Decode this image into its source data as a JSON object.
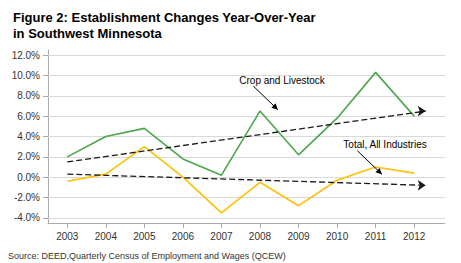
{
  "chart_data": {
    "type": "line",
    "title": "Figure 2: Establishment Changes Year-Over-Year\nin Southwest Minnesota",
    "source": "Source: DEED,Quarterly Census of Employment and Wages (QCEW)",
    "x": [
      2003,
      2004,
      2005,
      2006,
      2007,
      2008,
      2009,
      2010,
      2011,
      2012
    ],
    "series": [
      {
        "color": "#4CA64C",
        "line_style": "solid",
        "values": [
          2.0,
          4.0,
          4.8,
          1.8,
          0.2,
          6.5,
          2.2,
          5.8,
          10.3,
          6.0
        ]
      },
      {
        "color": "#FFC000",
        "line_style": "solid",
        "values": [
          -0.4,
          0.3,
          3.0,
          0.0,
          -3.5,
          -0.5,
          -2.8,
          -0.3,
          1.0,
          0.4
        ]
      },
      {
        "x": [
          2003,
          2012.3
        ],
        "values": [
          1.5,
          6.5
        ],
        "color": "#1a1a1a",
        "line_style": "dashed",
        "marker": "arrow"
      },
      {
        "x": [
          2003,
          2012.3
        ],
        "values": [
          0.3,
          -0.8
        ],
        "color": "#1a1a1a",
        "line_style": "dashed",
        "marker": "arrow"
      }
    ],
    "annotations": [
      {
        "text": "Crop and Livestock",
        "x": 2008.5,
        "y": 6.5
      },
      {
        "text": "Total, All Industries",
        "x": 2011.2,
        "y": 0.15
      }
    ],
    "xlim": [
      2002.5,
      2012.8
    ],
    "xticks": [
      2003,
      2004,
      2005,
      2006,
      2007,
      2008,
      2009,
      2010,
      2011,
      2012
    ],
    "ylim": [
      -4.5,
      12.5
    ],
    "yticks": [
      {
        "value": -4.0,
        "label": "-4.0%"
      },
      {
        "value": -2.0,
        "label": "-2.0%"
      },
      {
        "value": 0.0,
        "label": "0.0%"
      },
      {
        "value": 2.0,
        "label": "2.0%"
      },
      {
        "value": 4.0,
        "label": "4.0%"
      },
      {
        "value": 6.0,
        "label": "6.0%"
      },
      {
        "value": 8.0,
        "label": "8.0%"
      },
      {
        "value": 10.0,
        "label": "10.0%"
      },
      {
        "value": 12.0,
        "label": "12.0%"
      }
    ],
    "grid": true
  }
}
